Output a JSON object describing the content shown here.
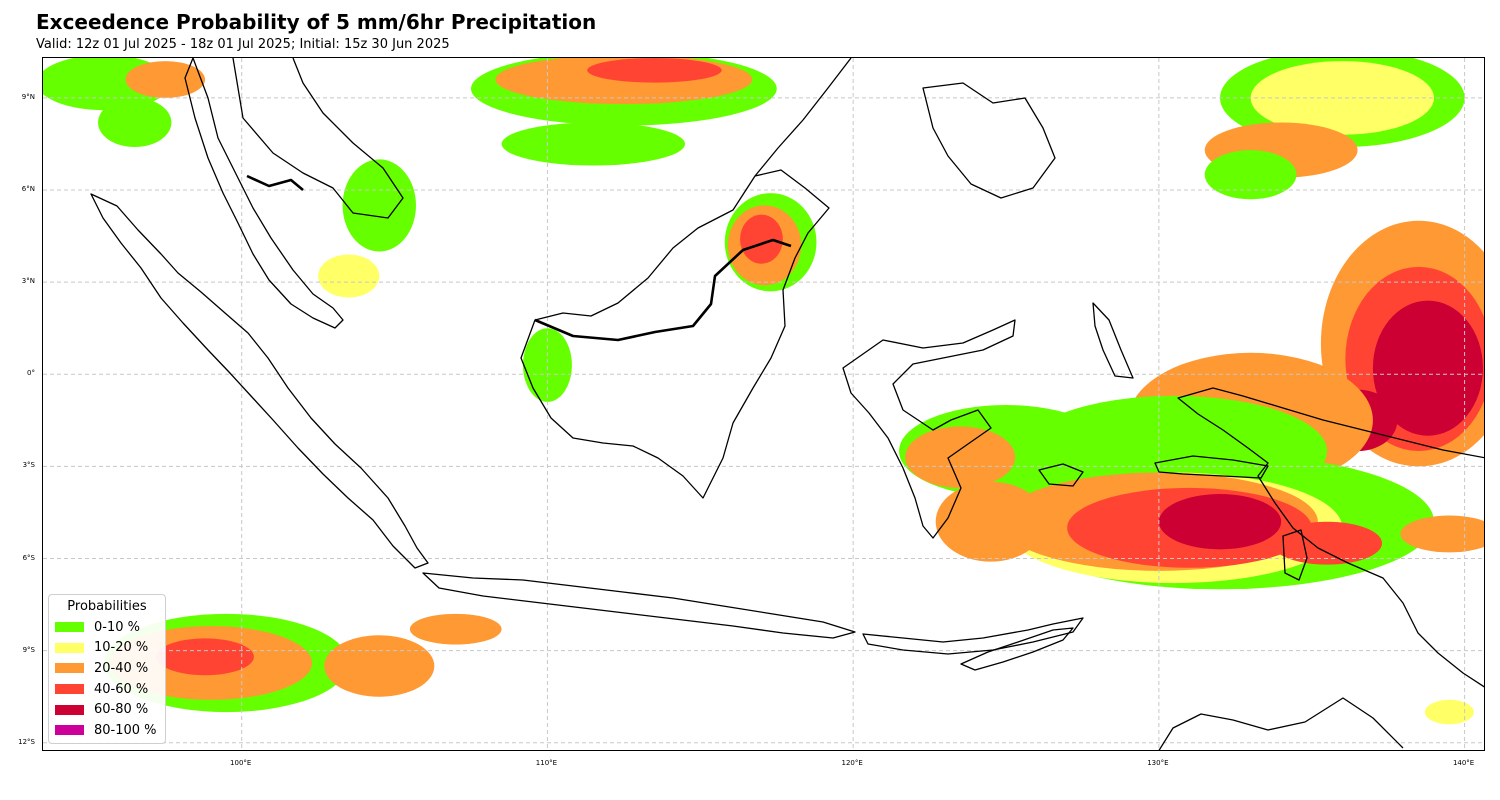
{
  "title": "Exceedence Probability of 5 mm/6hr Precipitation",
  "subtitle": "Valid: 12z 01 Jul 2025 - 18z 01 Jul 2025; Initial: 15z 30 Jun 2025",
  "map": {
    "region": "Indonesia",
    "extent": {
      "lon": [
        93.5,
        140.7
      ],
      "lat": [
        -12.3,
        10.3
      ]
    },
    "gridlines": "dashed",
    "lat_ticks": [
      {
        "value": 9,
        "label": "9°N"
      },
      {
        "value": 6,
        "label": "6°N"
      },
      {
        "value": 3,
        "label": "3°N"
      },
      {
        "value": 0,
        "label": "0°"
      },
      {
        "value": -3,
        "label": "3°S"
      },
      {
        "value": -6,
        "label": "6°S"
      },
      {
        "value": -9,
        "label": "9°S"
      },
      {
        "value": -12,
        "label": "12°S"
      }
    ],
    "lon_ticks": [
      {
        "value": 100,
        "label": "100°E"
      },
      {
        "value": 110,
        "label": "110°E"
      },
      {
        "value": 120,
        "label": "120°E"
      },
      {
        "value": 130,
        "label": "130°E"
      },
      {
        "value": 140,
        "label": "140°E"
      }
    ]
  },
  "legend": {
    "title": "Probabilities",
    "position": "lower-left",
    "items": [
      {
        "label": "0-10 %",
        "color": "#66ff00"
      },
      {
        "label": "10-20 %",
        "color": "#ffff66"
      },
      {
        "label": "20-40 %",
        "color": "#ff9933"
      },
      {
        "label": "40-60 %",
        "color": "#ff4433"
      },
      {
        "label": "60-80 %",
        "color": "#cc0033"
      },
      {
        "label": "80-100 %",
        "color": "#cc0099"
      }
    ]
  },
  "colors": {
    "p0_10": "#66ff00",
    "p10_20": "#ffff66",
    "p20_40": "#ff9933",
    "p40_60": "#ff4433",
    "p60_80": "#cc0033",
    "p80_100": "#cc0099",
    "coastline": "#000000",
    "gridline": "#c8c8c8"
  }
}
